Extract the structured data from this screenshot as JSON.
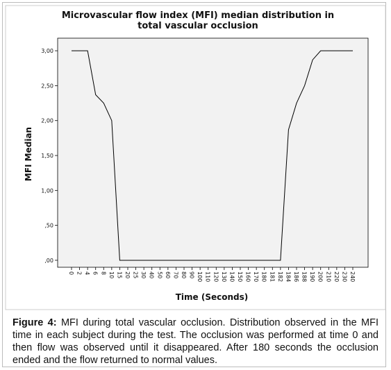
{
  "chart_data": {
    "type": "line",
    "title": [
      "Microvascular flow index (MFI) median distribution in",
      "total vascular occlusion"
    ],
    "x_label": "Time (Seconds)",
    "y_label": "MFI Median",
    "categories": [
      "0",
      "2",
      "4",
      "6",
      "8",
      "10",
      "15",
      "20",
      "25",
      "30",
      "40",
      "50",
      "60",
      "70",
      "80",
      "90",
      "100",
      "110",
      "120",
      "130",
      "140",
      "150",
      "160",
      "170",
      "180",
      "181",
      "182",
      "184",
      "186",
      "188",
      "190",
      "200",
      "210",
      "220",
      "230",
      "240"
    ],
    "values": [
      3,
      3,
      3,
      2.37,
      2.25,
      2,
      0,
      0,
      0,
      0,
      0,
      0,
      0,
      0,
      0,
      0,
      0,
      0,
      0,
      0,
      0,
      0,
      0,
      0,
      0,
      0,
      0,
      1.87,
      2.25,
      2.5,
      2.87,
      3,
      3,
      3,
      3,
      3
    ],
    "color": "#000000",
    "ylim": [
      -0.1,
      3.18
    ],
    "yticks": [
      {
        "value": 0,
        "label": ",00"
      },
      {
        "value": 0.5,
        "label": ",50"
      },
      {
        "value": 1,
        "label": "1,00"
      },
      {
        "value": 1.5,
        "label": "1,50"
      },
      {
        "value": 2,
        "label": "2,00"
      },
      {
        "value": 2.5,
        "label": "2,50"
      },
      {
        "value": 3,
        "label": "3,00"
      }
    ]
  },
  "caption": {
    "label": "Figure 4:",
    "text": " MFI during total vascular occlusion. Distribution observed in the MFI time in each subject during the test. The occlusion was performed at time 0 and then flow was observed until it disappeared. After 180 seconds the occlusion ended and the flow returned to normal values."
  }
}
